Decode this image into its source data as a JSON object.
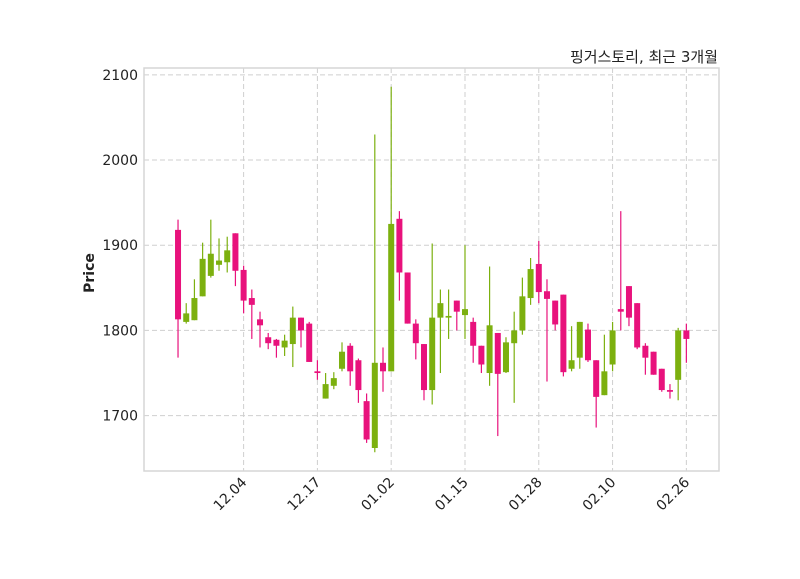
{
  "chart_data": {
    "type": "candlestick",
    "title": "핑거스토리, 최근 3개월",
    "ylabel": "Price",
    "xlabel": "",
    "ylim": [
      1635,
      2108
    ],
    "yticks": [
      1700,
      1800,
      1900,
      2000,
      2100
    ],
    "xticks": [
      {
        "index": 8,
        "label": "12.04"
      },
      {
        "index": 17,
        "label": "12.17"
      },
      {
        "index": 26,
        "label": "01.02"
      },
      {
        "index": 35,
        "label": "01.15"
      },
      {
        "index": 44,
        "label": "01.28"
      },
      {
        "index": 53,
        "label": "02.10"
      },
      {
        "index": 62,
        "label": "02.26"
      }
    ],
    "grid": true,
    "colors": {
      "up": "#7cb00f",
      "down": "#e8127c"
    },
    "ohlc": [
      [
        1918,
        1930,
        1768,
        1813
      ],
      [
        1810,
        1832,
        1808,
        1820
      ],
      [
        1812,
        1860,
        1812,
        1838
      ],
      [
        1840,
        1903,
        1840,
        1884
      ],
      [
        1864,
        1930,
        1862,
        1890
      ],
      [
        1877,
        1908,
        1870,
        1882
      ],
      [
        1880,
        1910,
        1868,
        1894
      ],
      [
        1914,
        1914,
        1852,
        1870
      ],
      [
        1871,
        1876,
        1820,
        1835
      ],
      [
        1838,
        1848,
        1790,
        1830
      ],
      [
        1813,
        1822,
        1780,
        1806
      ],
      [
        1792,
        1797,
        1778,
        1785
      ],
      [
        1789,
        1790,
        1768,
        1782
      ],
      [
        1780,
        1795,
        1770,
        1788
      ],
      [
        1784,
        1828,
        1757,
        1815
      ],
      [
        1815,
        1815,
        1780,
        1800
      ],
      [
        1808,
        1810,
        1763,
        1763
      ],
      [
        1752,
        1765,
        1742,
        1750
      ],
      [
        1720,
        1750,
        1720,
        1737
      ],
      [
        1735,
        1751,
        1731,
        1744
      ],
      [
        1755,
        1786,
        1752,
        1775
      ],
      [
        1782,
        1785,
        1735,
        1752
      ],
      [
        1765,
        1767,
        1715,
        1730
      ],
      [
        1717,
        1726,
        1668,
        1672
      ],
      [
        1662,
        2030,
        1657,
        1762
      ],
      [
        1762,
        1780,
        1728,
        1752
      ],
      [
        1752,
        2086,
        1752,
        1925
      ],
      [
        1931,
        1940,
        1835,
        1868
      ],
      [
        1868,
        1868,
        1808,
        1808
      ],
      [
        1808,
        1813,
        1766,
        1785
      ],
      [
        1784,
        1784,
        1718,
        1730
      ],
      [
        1730,
        1902,
        1713,
        1815
      ],
      [
        1815,
        1848,
        1750,
        1832
      ],
      [
        1815,
        1848,
        1790,
        1817
      ],
      [
        1835,
        1835,
        1800,
        1822
      ],
      [
        1818,
        1900,
        1790,
        1825
      ],
      [
        1810,
        1815,
        1762,
        1782
      ],
      [
        1782,
        1782,
        1750,
        1760
      ],
      [
        1750,
        1875,
        1735,
        1806
      ],
      [
        1797,
        1797,
        1676,
        1749
      ],
      [
        1751,
        1792,
        1750,
        1786
      ],
      [
        1785,
        1822,
        1715,
        1800
      ],
      [
        1800,
        1862,
        1795,
        1840
      ],
      [
        1838,
        1885,
        1830,
        1872
      ],
      [
        1878,
        1905,
        1832,
        1845
      ],
      [
        1846,
        1860,
        1740,
        1837
      ],
      [
        1835,
        1835,
        1800,
        1807
      ],
      [
        1842,
        1842,
        1746,
        1751
      ],
      [
        1755,
        1805,
        1752,
        1765
      ],
      [
        1768,
        1810,
        1755,
        1810
      ],
      [
        1801,
        1808,
        1763,
        1765
      ],
      [
        1765,
        1765,
        1686,
        1722
      ],
      [
        1724,
        1795,
        1724,
        1752
      ],
      [
        1760,
        1810,
        1752,
        1800
      ],
      [
        1825,
        1940,
        1800,
        1822
      ],
      [
        1852,
        1852,
        1805,
        1815
      ],
      [
        1832,
        1832,
        1778,
        1780
      ],
      [
        1782,
        1785,
        1748,
        1768
      ],
      [
        1775,
        1775,
        1748,
        1748
      ],
      [
        1755,
        1755,
        1728,
        1730
      ],
      [
        1730,
        1737,
        1720,
        1728
      ],
      [
        1742,
        1803,
        1718,
        1800
      ],
      [
        1800,
        1808,
        1762,
        1790
      ]
    ]
  }
}
